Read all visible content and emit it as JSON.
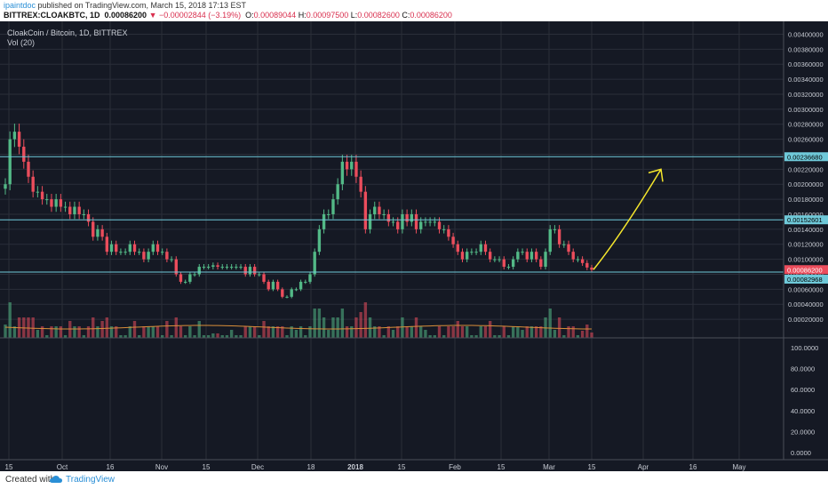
{
  "header": {
    "author": "ipaintdoc",
    "published_text": " published on TradingView.com, March 15, 2018 17:13 EST",
    "symbol": "BITTREX:CLOAKBTC, 1D",
    "last": "0.00086200",
    "change": "▼ −0.00002844 (−3.19%)",
    "o_label": "O:",
    "o_value": "0.00089044",
    "h_label": "H:",
    "h_value": "0.00097500",
    "l_label": "L:",
    "l_value": "0.00082600",
    "c_label": "C:",
    "c_value": "0.00086200"
  },
  "legend": {
    "title": "CloakCoin / Bitcoin, 1D, BITTREX",
    "vol": "Vol (20)"
  },
  "footer": {
    "created": "Created with",
    "brand": "TradingView"
  },
  "colors": {
    "background": "#151924",
    "up": "#53b987",
    "down": "#eb4d5c",
    "hline": "#6fc9d9",
    "annotation": "#f5e62c",
    "vol_ma": "#d98f3a",
    "grid": "#2a2e39",
    "axis_text": "#c8ccd4"
  },
  "chart_data": {
    "type": "candlestick",
    "title": "CloakCoin / Bitcoin, 1D, BITTREX",
    "x_ticks": [
      "15",
      "Oct",
      "16",
      "Nov",
      "15",
      "Dec",
      "18",
      "2018",
      "15",
      "Feb",
      "15",
      "Mar",
      "15",
      "Apr",
      "16",
      "May"
    ],
    "y_ticks": [
      "0.00400000",
      "0.00380000",
      "0.00360000",
      "0.00340000",
      "0.00320000",
      "0.00300000",
      "0.00280000",
      "0.00260000",
      "0.00240000",
      "0.00220000",
      "0.00200000",
      "0.00180000",
      "0.00160000",
      "0.00140000",
      "0.00120000",
      "0.00100000",
      "0.00080000",
      "0.00060000",
      "0.00040000",
      "0.00020000"
    ],
    "ylim": [
      0,
      0.0041
    ],
    "price_labels": {
      "resistance_high": "0.00236680",
      "resistance_mid": "0.00152601",
      "current": "0.00086200",
      "support": "0.00082968"
    },
    "horizontal_lines": [
      0.0023668,
      0.00152601,
      0.00082968
    ],
    "last_price": 0.000862,
    "lower_pane": {
      "y_ticks": [
        "100.0000",
        "80.0000",
        "60.0000",
        "40.0000",
        "20.0000",
        "0.0000"
      ],
      "ylim": [
        0,
        100
      ]
    },
    "close_path": [
      0.002,
      0.0026,
      0.0027,
      0.0025,
      0.0023,
      0.0021,
      0.0019,
      0.0019,
      0.0018,
      0.0018,
      0.0017,
      0.0018,
      0.0017,
      0.0017,
      0.0016,
      0.0017,
      0.0016,
      0.0016,
      0.0015,
      0.0013,
      0.0014,
      0.0013,
      0.0011,
      0.0012,
      0.0011,
      0.0011,
      0.0011,
      0.0012,
      0.0011,
      0.0011,
      0.001,
      0.0011,
      0.0012,
      0.0011,
      0.0011,
      0.001,
      0.001,
      0.0008,
      0.0007,
      0.0007,
      0.0008,
      0.0008,
      0.0009,
      0.0009,
      0.0009,
      0.00092,
      0.0009,
      0.0009,
      0.0009,
      0.0009,
      0.0009,
      0.0009,
      0.0008,
      0.0009,
      0.0008,
      0.0008,
      0.0007,
      0.0006,
      0.0007,
      0.0006,
      0.0005,
      0.0005,
      0.0006,
      0.0006,
      0.0007,
      0.0007,
      0.0008,
      0.0011,
      0.0014,
      0.0016,
      0.0016,
      0.0018,
      0.002,
      0.0023,
      0.0022,
      0.0023,
      0.0021,
      0.0019,
      0.0014,
      0.0016,
      0.0017,
      0.0016,
      0.0016,
      0.0015,
      0.0015,
      0.0014,
      0.0016,
      0.0015,
      0.0016,
      0.0014,
      0.0015,
      0.0015,
      0.0015,
      0.0015,
      0.0014,
      0.0014,
      0.0013,
      0.0012,
      0.0011,
      0.001,
      0.0011,
      0.0011,
      0.0011,
      0.0012,
      0.0011,
      0.001,
      0.001,
      0.001,
      0.0009,
      0.0009,
      0.001,
      0.0011,
      0.0011,
      0.001,
      0.0011,
      0.001,
      0.0009,
      0.0011,
      0.0014,
      0.0014,
      0.0012,
      0.0012,
      0.0011,
      0.001,
      0.001,
      0.00095,
      0.00089,
      0.00086
    ],
    "annotation_arrow": {
      "from_price": 0.000862,
      "to_price": 0.0022
    }
  }
}
